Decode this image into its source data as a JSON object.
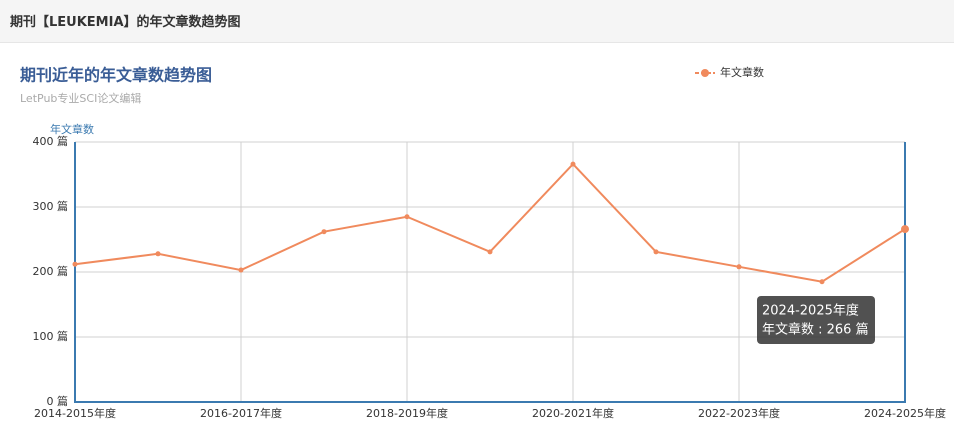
{
  "header": {
    "title": "期刊【LEUKEMIA】的年文章数趋势图"
  },
  "chart_data": {
    "type": "line",
    "title": "期刊近年的年文章数趋势图",
    "subtitle": "LetPub专业SCI论文编辑",
    "y_label": "年文章数",
    "categories": [
      "2014-2015年度",
      null,
      "2016-2017年度",
      null,
      "2018-2019年度",
      null,
      "2020-2021年度",
      null,
      "2022-2023年度",
      null,
      "2024-2025年度"
    ],
    "series": [
      {
        "name": "年文章数",
        "color": "#f08a5d",
        "values": [
          212,
          228,
          203,
          262,
          285,
          231,
          366,
          231,
          208,
          185,
          266
        ]
      }
    ],
    "ylim": [
      0,
      400
    ],
    "yticks": [
      {
        "value": 0,
        "label": "0 篇"
      },
      {
        "value": 100,
        "label": "100 篇"
      },
      {
        "value": 200,
        "label": "200 篇"
      },
      {
        "value": 300,
        "label": "300 篇"
      },
      {
        "value": 400,
        "label": "400 篇"
      }
    ],
    "grid": true,
    "tooltip": {
      "title": "2024-2025年度",
      "text": "年文章数 : 266 篇"
    }
  }
}
